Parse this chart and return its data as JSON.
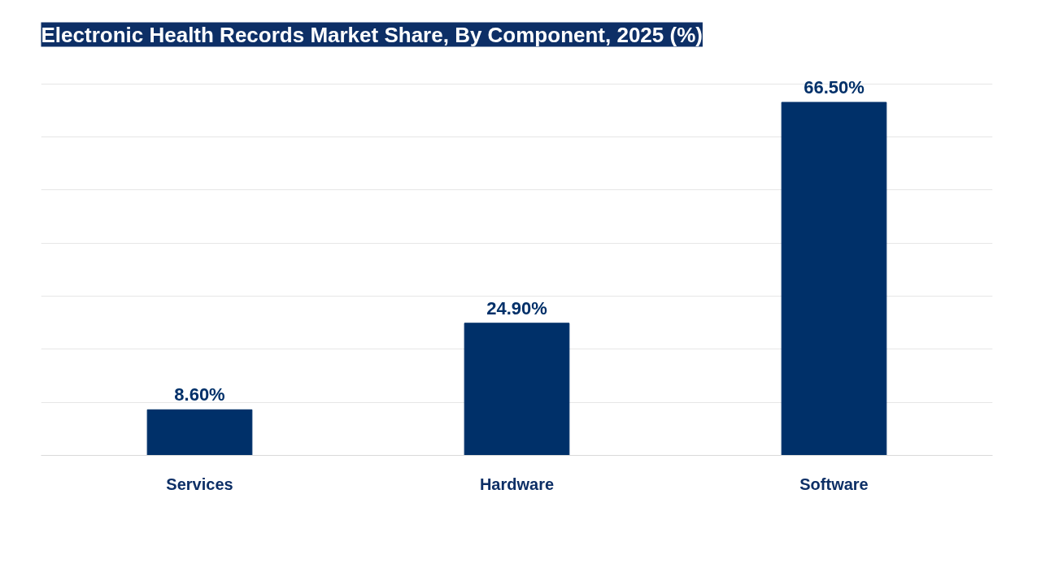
{
  "chart_data": {
    "type": "bar",
    "title": "Electronic Health Records Market Share, By Component, 2025 (%)",
    "categories": [
      "Services",
      "Hardware",
      "Software"
    ],
    "values": [
      8.6,
      24.9,
      66.5
    ],
    "value_labels": [
      "8.60%",
      "24.90%",
      "66.50%"
    ],
    "color": "#003069",
    "tick_labels": "x",
    "grid": "y"
  }
}
